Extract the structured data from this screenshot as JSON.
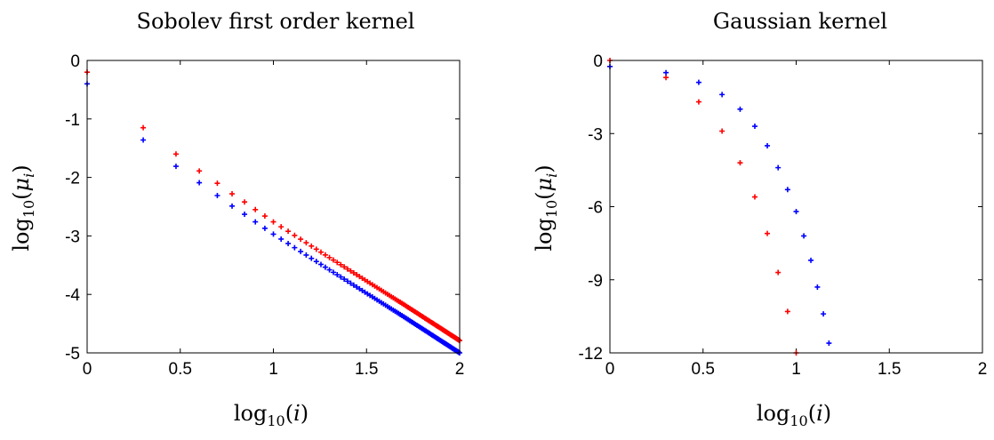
{
  "chart_data": [
    {
      "type": "scatter",
      "title": "Sobolev first order kernel",
      "xlabel": "log10(i)",
      "ylabel": "log10(μi)",
      "xlim": [
        0,
        2
      ],
      "ylim": [
        -5,
        0
      ],
      "xticks": [
        "0",
        "0.5",
        "1",
        "1.5",
        "2"
      ],
      "yticks": [
        "0",
        "-1",
        "-2",
        "-3",
        "-4",
        "-5"
      ],
      "marker": "+",
      "grid": false,
      "x": "log10(i) for i = 1..100",
      "series": [
        {
          "color": "#ff0000",
          "model": "power-law",
          "values_at_i": {
            "1": -0.2,
            "2": -1.15,
            "3": -1.6,
            "4": -1.89,
            "5": -2.1,
            "6": -2.28,
            "7": -2.42,
            "8": -2.55,
            "9": -2.66,
            "10": -2.76,
            "20": -3.37,
            "50": -4.17,
            "100": -4.79
          }
        },
        {
          "color": "#0000ff",
          "model": "power-law",
          "values_at_i": {
            "1": -0.4,
            "2": -1.36,
            "3": -1.81,
            "4": -2.09,
            "5": -2.31,
            "6": -2.49,
            "7": -2.63,
            "8": -2.76,
            "9": -2.87,
            "10": -2.97,
            "20": -3.58,
            "50": -4.38,
            "100": -5.0
          }
        }
      ]
    },
    {
      "type": "scatter",
      "title": "Gaussian kernel",
      "xlabel": "log10(i)",
      "ylabel": "log10(μi)",
      "xlim": [
        0,
        2
      ],
      "ylim": [
        -12,
        0
      ],
      "xticks": [
        "0",
        "0.5",
        "1",
        "1.5",
        "2"
      ],
      "yticks": [
        "0",
        "-3",
        "-6",
        "-9",
        "-12"
      ],
      "marker": "+",
      "grid": false,
      "series": [
        {
          "color": "#ff0000",
          "x": [
            0,
            0.301,
            0.477,
            0.602,
            0.699,
            0.778,
            0.845,
            0.903,
            0.954,
            1.0
          ],
          "values": [
            0,
            -0.7,
            -1.7,
            -2.9,
            -4.2,
            -5.6,
            -7.1,
            -8.7,
            -10.3,
            -12.0
          ]
        },
        {
          "color": "#0000ff",
          "x": [
            0,
            0.301,
            0.477,
            0.602,
            0.699,
            0.778,
            0.845,
            0.903,
            0.954,
            1.0,
            1.041,
            1.079,
            1.114,
            1.146,
            1.176
          ],
          "values": [
            -0.25,
            -0.5,
            -0.9,
            -1.4,
            -2.0,
            -2.7,
            -3.5,
            -4.4,
            -5.3,
            -6.2,
            -7.2,
            -8.2,
            -9.3,
            -10.4,
            -11.6
          ]
        }
      ]
    }
  ]
}
